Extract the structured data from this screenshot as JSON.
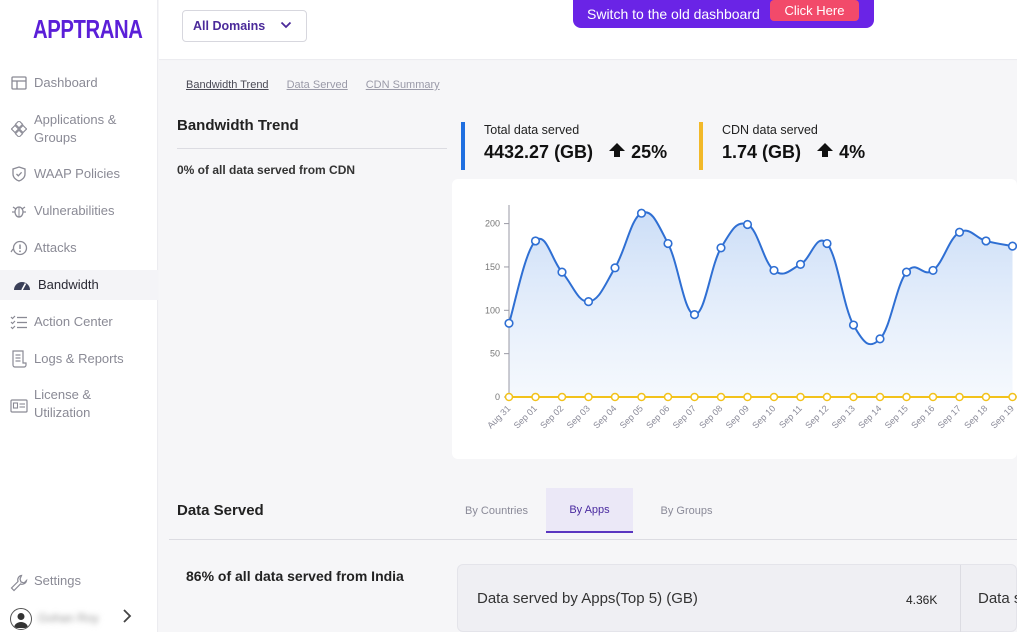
{
  "app": {
    "logo": "APPTRANA"
  },
  "sidebar": {
    "items": [
      {
        "label": "Dashboard",
        "icon": "dashboard-icon"
      },
      {
        "label": "Applications & Groups",
        "icon": "applications-icon"
      },
      {
        "label": "WAAP Policies",
        "icon": "shield-icon"
      },
      {
        "label": "Vulnerabilities",
        "icon": "bug-icon"
      },
      {
        "label": "Attacks",
        "icon": "alert-icon"
      },
      {
        "label": "Bandwidth",
        "icon": "gauge-icon"
      },
      {
        "label": "Action Center",
        "icon": "checklist-icon"
      },
      {
        "label": "Logs & Reports",
        "icon": "report-icon"
      },
      {
        "label": "License & Utilization",
        "icon": "license-icon"
      },
      {
        "label": "Settings",
        "icon": "wrench-icon"
      }
    ],
    "active": "Bandwidth",
    "user": {
      "name": "Gohan Roy"
    }
  },
  "topbar": {
    "domain_select": "All Domains",
    "banner_text": "Switch to the old dashboard",
    "banner_button": "Click Here"
  },
  "subtabs": [
    "Bandwidth Trend",
    "Data Served",
    "CDN Summary"
  ],
  "bandwidth": {
    "title": "Bandwidth Trend",
    "cdn_note": "0% of all data served from CDN",
    "stats": [
      {
        "label": "Total data served",
        "value": "4432.27 (GB)",
        "change": "25%",
        "color": "#1f6fe0"
      },
      {
        "label": "CDN data served",
        "value": "1.74 (GB)",
        "change": "4%",
        "color": "#f2b92a"
      }
    ]
  },
  "chart_data": {
    "type": "line",
    "x": [
      "Aug 31",
      "Sep 01",
      "Sep 02",
      "Sep 03",
      "Sep 04",
      "Sep 05",
      "Sep 06",
      "Sep 07",
      "Sep 08",
      "Sep 09",
      "Sep 10",
      "Sep 11",
      "Sep 12",
      "Sep 13",
      "Sep 14",
      "Sep 15",
      "Sep 16",
      "Sep 17",
      "Sep 18",
      "Sep 19"
    ],
    "yticks": [
      0,
      50,
      100,
      150,
      200
    ],
    "ylim": [
      0,
      220
    ],
    "series": [
      {
        "values": [
          85,
          180,
          144,
          110,
          149,
          212,
          177,
          95,
          172,
          199,
          146,
          153,
          177,
          83,
          67,
          144,
          146,
          190,
          180,
          174
        ],
        "color": "#2f6fd3"
      },
      {
        "values": [
          0,
          0,
          0,
          0,
          0,
          0,
          0,
          0,
          0,
          0,
          0,
          0,
          0,
          0,
          0,
          0,
          0,
          0,
          0,
          0
        ],
        "color": "#f2c21b"
      }
    ]
  },
  "data_served": {
    "title": "Data Served",
    "tabs": [
      "By Countries",
      "By Apps",
      "By Groups"
    ],
    "active_tab": "By Apps",
    "india_note": "86% of all data served from India",
    "apps_card": {
      "title": "Data served by Apps(Top 5) (GB)",
      "value": "4.36K",
      "next_title": "Data s"
    }
  }
}
